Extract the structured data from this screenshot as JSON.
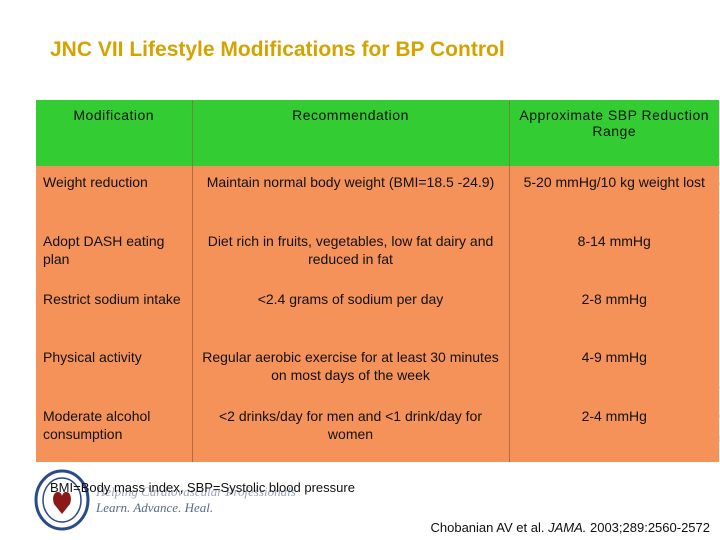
{
  "slide": {
    "title": "JNC VII Lifestyle Modifications for BP Control"
  },
  "table": {
    "headers": [
      "Modification",
      "Recommendation",
      "Approximate SBP Reduction Range"
    ],
    "rows": [
      [
        "Weight reduction",
        "Maintain normal body weight (BMI=18.5 -24.9)",
        "5-20 mmHg/10 kg weight lost"
      ],
      [
        "Adopt DASH eating plan",
        "Diet rich in fruits, vegetables, low fat dairy and reduced in fat",
        "8-14 mmHg"
      ],
      [
        "Restrict sodium intake",
        "<2.4 grams of sodium per day",
        "2-8 mmHg"
      ],
      [
        "Physical activity",
        "Regular aerobic exercise for at least 30 minutes on most days of the week",
        "4-9 mmHg"
      ],
      [
        "Moderate alcohol consumption",
        "<2 drinks/day for men and <1 drink/day for women",
        "2-4 mmHg"
      ]
    ]
  },
  "footnote": "BMI=Body mass index, SBP=Systolic blood pressure",
  "logo": {
    "tagline1": "Helping Cardiovascular Professionals",
    "tagline2": "Learn. Advance. Heal."
  },
  "citation": {
    "authors": "Chobanian AV et al.",
    "journal": "JAMA.",
    "details": "2003;289:2560-2572"
  },
  "colors": {
    "title": "#d4a300",
    "header_bg": "#33cc33",
    "cell_bg": "#f5925a"
  }
}
